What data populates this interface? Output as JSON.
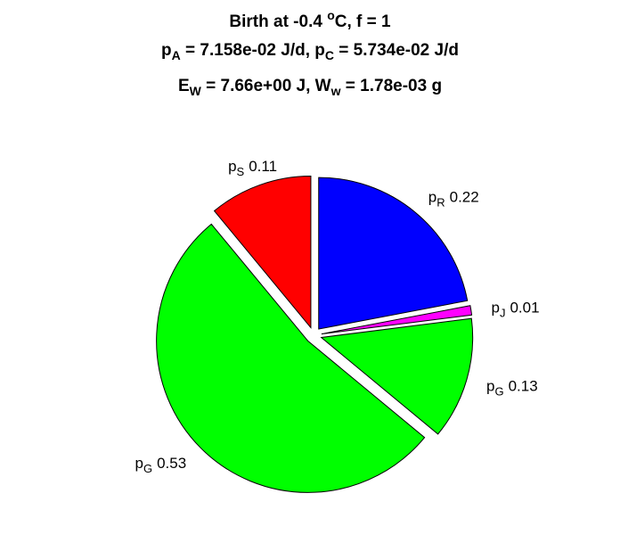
{
  "chart_data": {
    "type": "pie",
    "title": [
      [
        {
          "text": "Birth at -0.4 "
        },
        {
          "text": "o",
          "script": "sup"
        },
        {
          "text": "C, f = 1"
        }
      ],
      [
        {
          "text": "p"
        },
        {
          "text": "A",
          "script": "sub"
        },
        {
          "text": " = 7.158e-02 J/d, p"
        },
        {
          "text": "C",
          "script": "sub"
        },
        {
          "text": " = 5.734e-02 J/d"
        }
      ],
      [
        {
          "text": "E"
        },
        {
          "text": "W",
          "script": "sub"
        },
        {
          "text": " = 7.66e+00 J, W"
        },
        {
          "text": "w",
          "script": "sub"
        },
        {
          "text": " = 1.78e-03 g"
        }
      ]
    ],
    "labels": [
      [
        {
          "text": "p"
        },
        {
          "text": "R",
          "script": "sub"
        }
      ],
      [
        {
          "text": "p"
        },
        {
          "text": "J",
          "script": "sub"
        }
      ],
      [
        {
          "text": "p"
        },
        {
          "text": "G",
          "script": "sub"
        }
      ],
      [
        {
          "text": "p"
        },
        {
          "text": "G",
          "script": "sub"
        }
      ],
      [
        {
          "text": "p"
        },
        {
          "text": "S",
          "script": "sub"
        }
      ]
    ],
    "values": [
      0.22,
      0.01,
      0.13,
      0.53,
      0.11
    ],
    "colors": [
      "#0000ff",
      "#ff00ff",
      "#00ff00",
      "#00ff00",
      "#ff0000"
    ]
  }
}
